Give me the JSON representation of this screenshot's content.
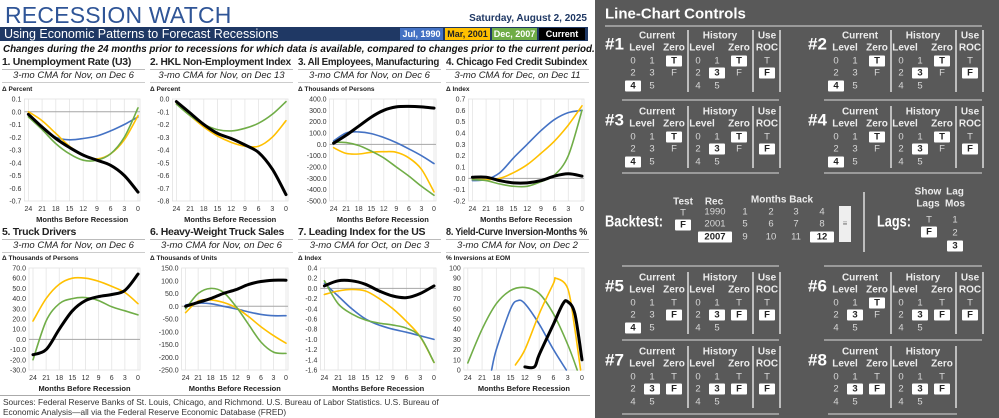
{
  "header": {
    "title": "RECESSION WATCH",
    "date": "Saturday, August 2, 2025",
    "subtitle": "Using Economic Patterns to Forecast Recessions",
    "intro": "Changes during the 24 months prior to recessions for which data is available, compared to changes prior to the current period.",
    "legend": [
      {
        "label": "Jul, 1990",
        "color": "#4472c4",
        "text_color": "#ffffff"
      },
      {
        "label": "Mar, 2001",
        "color": "#ffc000",
        "text_color": "#222222"
      },
      {
        "label": "Dec, 2007",
        "color": "#70ad47",
        "text_color": "#ffffff"
      },
      {
        "label": "Current",
        "color": "#000000",
        "text_color": "#ffffff"
      }
    ]
  },
  "colors": {
    "blue": "#4472c4",
    "yellow": "#ffc000",
    "green": "#70ad47",
    "black": "#000000"
  },
  "chart_data": [
    {
      "type": "line",
      "title": "1. Unemployment Rate (U3)",
      "subtitle": "3-mo CMA for Nov, on Dec 6",
      "ylabel": "Δ Percent",
      "xlabel": "Months Before Recession",
      "ylim": [
        -0.7,
        0.1
      ],
      "ystep": 0.1,
      "decimals": 1,
      "xticks": [
        24,
        21,
        18,
        15,
        12,
        9,
        6,
        3,
        0
      ],
      "series": [
        {
          "name": "Jul, 1990",
          "color": "blue",
          "values": [
            -0.03,
            -0.12,
            -0.2,
            -0.22,
            -0.21,
            -0.19,
            -0.15,
            -0.1,
            -0.04
          ]
        },
        {
          "name": "Mar, 2001",
          "color": "yellow",
          "values": [
            0,
            -0.07,
            -0.17,
            -0.27,
            -0.34,
            -0.37,
            -0.33,
            -0.22,
            -0.03
          ]
        },
        {
          "name": "Dec, 2007",
          "color": "green",
          "values": [
            -0.04,
            -0.14,
            -0.25,
            -0.33,
            -0.38,
            -0.38,
            -0.33,
            -0.2,
            0.03
          ]
        },
        {
          "name": "Current",
          "color": "black",
          "values": [
            -0.02,
            -0.12,
            -0.21,
            -0.28,
            -0.34,
            -0.38,
            -0.42,
            -0.5,
            -0.63
          ]
        }
      ]
    },
    {
      "type": "line",
      "title": "2. HKL Non-Employment Index",
      "subtitle": "3-mo CMA for Nov, on Dec 13",
      "ylabel": "Δ Percent",
      "xlabel": "Months Before Recession",
      "ylim": [
        -0.8,
        0.0
      ],
      "ystep": 0.1,
      "decimals": 1,
      "xticks": [
        24,
        21,
        18,
        15,
        12,
        9,
        6,
        3,
        0
      ],
      "series": [
        {
          "name": "Mar, 2001",
          "color": "yellow",
          "values": [
            -0.03,
            -0.13,
            -0.22,
            -0.29,
            -0.34,
            -0.37,
            -0.37,
            -0.3,
            -0.17
          ]
        },
        {
          "name": "Dec, 2007",
          "color": "green",
          "values": [
            -0.04,
            -0.13,
            -0.2,
            -0.24,
            -0.25,
            -0.23,
            -0.19,
            -0.12,
            -0.02
          ]
        },
        {
          "name": "Current",
          "color": "black",
          "values": [
            -0.02,
            -0.11,
            -0.2,
            -0.27,
            -0.31,
            -0.36,
            -0.42,
            -0.55,
            -0.75
          ]
        }
      ]
    },
    {
      "type": "line",
      "title": "3. All Employees, Manufacturing",
      "subtitle": "3-mo CMA for Nov, on Dec 6",
      "ylabel": "Δ Thousands of Persons",
      "xlabel": "Months Before Recession",
      "ylim": [
        -500,
        400
      ],
      "ystep": 100,
      "decimals": 1,
      "xticks": [
        24,
        21,
        18,
        15,
        12,
        9,
        6,
        3,
        0
      ],
      "series": [
        {
          "name": "Jul, 1990",
          "color": "blue",
          "values": [
            30,
            100,
            110,
            95,
            60,
            15,
            -40,
            -100,
            -170
          ]
        },
        {
          "name": "Mar, 2001",
          "color": "yellow",
          "values": [
            -30,
            -80,
            -85,
            -70,
            -65,
            -70,
            -120,
            -220,
            -420
          ]
        },
        {
          "name": "Dec, 2007",
          "color": "green",
          "values": [
            20,
            15,
            -10,
            -60,
            -120,
            -200,
            -280,
            -370,
            -450
          ]
        },
        {
          "name": "Current",
          "color": "black",
          "values": [
            10,
            80,
            160,
            240,
            300,
            330,
            335,
            330,
            320
          ]
        }
      ]
    },
    {
      "type": "line",
      "title": "4. Chicago Fed Credit Subindex",
      "subtitle": "3-mo CMA for Dec, on Dec 11",
      "ylabel": "Δ Index",
      "xlabel": "Months Before Recession",
      "ylim": [
        -0.2,
        0.7
      ],
      "ystep": 0.1,
      "decimals": 1,
      "xticks": [
        24,
        21,
        18,
        15,
        12,
        9,
        6,
        3,
        0
      ],
      "series": [
        {
          "name": "Jul, 1990",
          "color": "blue",
          "values": [
            -0.02,
            -0.01,
            0.05,
            0.18,
            0.3,
            0.42,
            0.52,
            0.58,
            0.6
          ]
        },
        {
          "name": "Mar, 2001",
          "color": "yellow",
          "values": [
            -0.01,
            -0.01,
            0.0,
            0.05,
            0.12,
            0.22,
            0.33,
            0.47,
            0.64
          ]
        },
        {
          "name": "Dec, 2007",
          "color": "green",
          "values": [
            -0.01,
            -0.02,
            -0.05,
            -0.07,
            -0.07,
            -0.03,
            0.03,
            0.2,
            0.6
          ]
        },
        {
          "name": "Current",
          "color": "black",
          "values": [
            0.01,
            0.01,
            -0.02,
            -0.04,
            -0.04,
            -0.02,
            0.02,
            0.04,
            0.02
          ]
        }
      ]
    },
    {
      "type": "line",
      "title": "5. Truck Drivers",
      "subtitle": "3-mo CMA for Nov, on Dec 6",
      "ylabel": "Δ Thousands of Persons",
      "xlabel": "Months Before Recession",
      "ylim": [
        -30,
        70
      ],
      "ystep": 10,
      "decimals": 1,
      "xticks": [
        24,
        21,
        18,
        15,
        12,
        9,
        6,
        3,
        0
      ],
      "series": [
        {
          "name": "Mar, 2001",
          "color": "yellow",
          "values": [
            18,
            40,
            54,
            60,
            60,
            57,
            52,
            46,
            35
          ]
        },
        {
          "name": "Dec, 2007",
          "color": "green",
          "values": [
            -20,
            18,
            35,
            40,
            41,
            38,
            32,
            28,
            24
          ]
        },
        {
          "name": "Current",
          "color": "black",
          "values": [
            -15,
            -10,
            10,
            28,
            38,
            42,
            44,
            48,
            64
          ]
        }
      ]
    },
    {
      "type": "line",
      "title": "6. Heavy-Weight Truck Sales",
      "subtitle": "3-mo CMA for Nov, on Dec 6",
      "ylabel": "Δ Thousands of Units",
      "xlabel": "Months Before Recession",
      "ylim": [
        -250,
        150
      ],
      "ystep": 50,
      "decimals": 1,
      "xticks": [
        24,
        21,
        18,
        15,
        12,
        9,
        6,
        3,
        0
      ],
      "series": [
        {
          "name": "Jul, 1990",
          "color": "blue",
          "values": [
            5,
            12,
            10,
            0,
            -10,
            -22,
            -32,
            -37,
            -37
          ]
        },
        {
          "name": "Mar, 2001",
          "color": "yellow",
          "values": [
            -25,
            20,
            25,
            15,
            -5,
            -40,
            -80,
            -115,
            -145
          ]
        },
        {
          "name": "Dec, 2007",
          "color": "green",
          "values": [
            -10,
            50,
            70,
            55,
            0,
            -70,
            -140,
            -180,
            -185
          ]
        },
        {
          "name": "Current",
          "color": "black",
          "values": [
            0,
            15,
            30,
            50,
            65,
            85,
            97,
            102,
            102
          ]
        }
      ]
    },
    {
      "type": "line",
      "title": "7. Leading Index for the US",
      "subtitle": "3-mo CMA for Oct, on Dec 3",
      "ylabel": "Δ Index",
      "xlabel": "Months Before Recession",
      "ylim": [
        -1.6,
        0.4
      ],
      "ystep": 0.2,
      "decimals": 1,
      "xticks": [
        24,
        21,
        18,
        15,
        12,
        9,
        6,
        3,
        0
      ],
      "series": [
        {
          "name": "Jul, 1990",
          "color": "blue",
          "values": [
            0.1,
            -0.15,
            -0.4,
            -0.6,
            -0.72,
            -0.8,
            -0.86,
            -0.93,
            -1.0
          ]
        },
        {
          "name": "Mar, 2001",
          "color": "yellow",
          "values": [
            -0.12,
            -0.05,
            -0.02,
            -0.05,
            -0.2,
            -0.4,
            -0.65,
            -0.95,
            -1.45
          ]
        },
        {
          "name": "Dec, 2007",
          "color": "green",
          "values": [
            0.15,
            -0.3,
            -0.5,
            -0.62,
            -0.68,
            -0.72,
            -0.78,
            -0.95,
            -1.45
          ]
        },
        {
          "name": "Current",
          "color": "black",
          "values": [
            0.05,
            0.15,
            0.15,
            0.08,
            -0.05,
            -0.15,
            -0.18,
            -0.1,
            0.05
          ]
        }
      ]
    },
    {
      "type": "line",
      "title": "8. Yield-Curve Inversion-Months %",
      "subtitle": "3-mo CMA for Nov, on Dec 2",
      "ylabel": "% Inversions at EOM",
      "xlabel": "Months Before Recession",
      "ylim": [
        0,
        100
      ],
      "ystep": 10,
      "decimals": 0,
      "xticks": [
        24,
        21,
        18,
        15,
        12,
        9,
        6,
        3,
        0
      ],
      "series": [
        {
          "name": "Jul, 1990",
          "color": "blue",
          "x": [
            19,
            18,
            15,
            13.5,
            12,
            9,
            6,
            3.3
          ],
          "values": [
            0,
            20,
            60,
            68,
            65,
            45,
            20,
            0
          ]
        },
        {
          "name": "Dec, 2007",
          "color": "green",
          "x": [
            24,
            21,
            18,
            15,
            12,
            9,
            6,
            3,
            1
          ],
          "values": [
            7,
            40,
            65,
            78,
            81,
            75,
            55,
            25,
            0
          ]
        },
        {
          "name": "Mar, 2001",
          "color": "yellow",
          "x": [
            14,
            12,
            9,
            6,
            5.5,
            3,
            1.5,
            0.3
          ],
          "values": [
            5,
            20,
            55,
            85,
            90,
            80,
            40,
            0
          ]
        },
        {
          "name": "Current",
          "color": "black",
          "x": [
            12,
            10,
            9,
            6,
            4,
            3,
            1.5,
            0
          ],
          "values": [
            3,
            3,
            15,
            45,
            65,
            67,
            55,
            10
          ]
        }
      ]
    }
  ],
  "sources": "Sources:  Federal Reserve Banks of St. Louis, Chicago, and Richmond. U.S. Bureau of Labor Statistics. U.S. Bureau of Economic Analysis—all via the Federal Reserve Economic Database (FRED)",
  "controls": {
    "title": "Line-Chart Controls",
    "headers": {
      "current": "Current",
      "history": "History",
      "level": "Level",
      "zero": "Zero",
      "use": "Use",
      "roc": "ROC"
    },
    "level_options": [
      "0",
      "1",
      "2",
      "3",
      "4",
      "5"
    ],
    "bool_options": [
      "T",
      "F"
    ],
    "blocks": [
      {
        "label": "#1",
        "current_level": "4",
        "current_zero": "T",
        "history_level": "3",
        "history_zero": "T",
        "roc": "F"
      },
      {
        "label": "#2",
        "current_level": "4",
        "current_zero": "T",
        "history_level": "3",
        "history_zero": "T",
        "roc": "F"
      },
      {
        "label": "#3",
        "current_level": "4",
        "current_zero": "T",
        "history_level": "3",
        "history_zero": "T",
        "roc": "F"
      },
      {
        "label": "#4",
        "current_level": "4",
        "current_zero": "T",
        "history_level": "3",
        "history_zero": "T",
        "roc": "F"
      },
      {
        "label": "#5",
        "current_level": "4",
        "current_zero": "F",
        "history_level": "3",
        "history_zero": "F",
        "roc": "F"
      },
      {
        "label": "#6",
        "current_level": "3",
        "current_zero": "T",
        "history_level": "3",
        "history_zero": "F",
        "roc": "F"
      },
      {
        "label": "#7",
        "current_level": "3",
        "current_zero": "F",
        "history_level": "3",
        "history_zero": "F",
        "roc": "F"
      },
      {
        "label": "#8",
        "current_level": "3",
        "current_zero": "F",
        "history_level": "3",
        "history_zero": "F",
        "roc": null
      }
    ],
    "backtest": {
      "label": "Backtest:",
      "test_header": "Test",
      "test_options": [
        "T",
        "F"
      ],
      "test_selected": "F",
      "rec_header": "Rec",
      "rec_options": [
        "1990",
        "2001",
        "2007"
      ],
      "rec_selected": "2007",
      "months_header": "Months Back",
      "months_options": [
        "1",
        "2",
        "3",
        "4",
        "5",
        "6",
        "7",
        "8",
        "9",
        "10",
        "11",
        "12"
      ],
      "months_selected": "12",
      "scroll_glyph": "≡"
    },
    "lags": {
      "label": "Lags:",
      "show_header_1": "Show",
      "show_header_2": "Lags",
      "show_options": [
        "T",
        "F"
      ],
      "show_selected": "F",
      "mos_header_1": "Lag",
      "mos_header_2": "Mos",
      "mos_options": [
        "1",
        "2",
        "3"
      ],
      "mos_selected": "3"
    }
  }
}
